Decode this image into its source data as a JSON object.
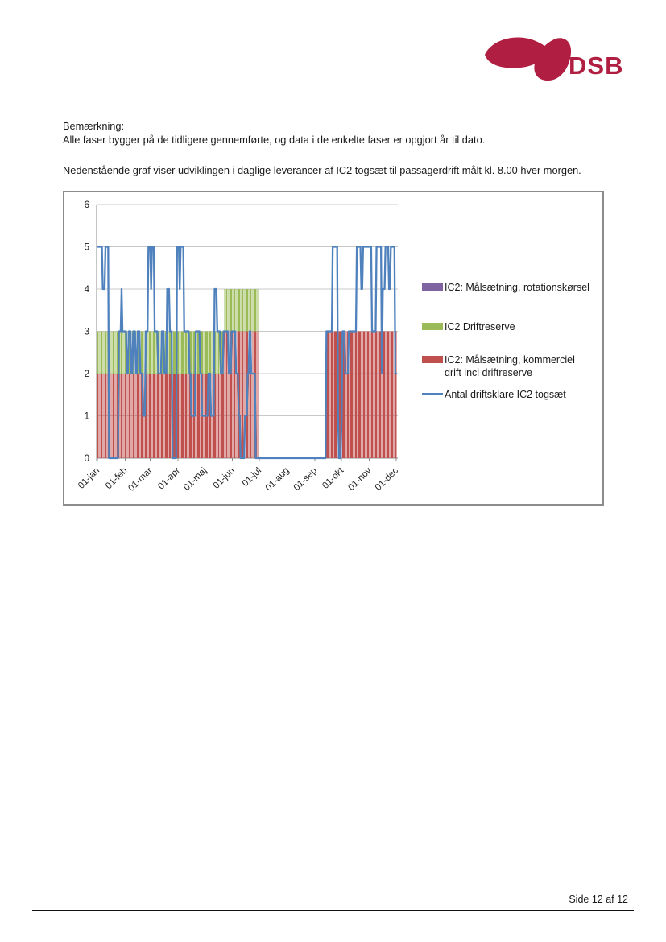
{
  "logo": {
    "text": "DSB",
    "color": "#B01E41"
  },
  "remark": {
    "heading": "Bemærkning:",
    "body": "Alle faser bygger på de tidligere gennemførte, og data i de enkelte faser er opgjort år til dato."
  },
  "intro": "Nedenstående graf viser udviklingen i daglige leverancer af IC2 togsæt til passagerdrift målt kl. 8.00 hver morgen.",
  "footer": {
    "page_label": "Side 12 af 12"
  },
  "chart_data": {
    "type": "bar",
    "subtype": "stacked-daily-bars-with-line",
    "x": {
      "unit": "day-of-year",
      "range": [
        1,
        335
      ],
      "tick_days": [
        1,
        32,
        60,
        91,
        121,
        152,
        182,
        213,
        244,
        274,
        305,
        335
      ],
      "tick_labels": [
        "01-jan",
        "01-feb",
        "01-mar",
        "01-apr",
        "01-maj",
        "01-jun",
        "01-jul",
        "01-aug",
        "01-sep",
        "01-okt",
        "01-nov",
        "01-dec"
      ]
    },
    "y": {
      "min": 0,
      "max": 6,
      "ticks": [
        0,
        1,
        2,
        3,
        4,
        5,
        6
      ]
    },
    "grid": "horizontal",
    "legend_position": "right",
    "series": [
      {
        "name": "IC2: Målsætning, rotationskørsel",
        "type": "bar",
        "color": "#8064A2",
        "runs_day_value": []
      },
      {
        "name": "IC2 Driftreserve",
        "type": "bar",
        "color": "#9BBB59",
        "stacked_on": 2,
        "runs_day_value": [
          [
            1,
            142,
            1
          ],
          [
            143,
            181,
            1
          ]
        ]
      },
      {
        "name": "IC2: Målsætning, kommerciel drift  incl driftreserve",
        "type": "bar",
        "color": "#C0504D",
        "runs_day_value": [
          [
            1,
            142,
            2
          ],
          [
            143,
            181,
            3
          ],
          [
            257,
            335,
            3
          ]
        ]
      },
      {
        "name": "Antal driftsklare IC2 togsæt",
        "type": "line",
        "color": "#4F81BD",
        "runs_day_value": [
          [
            1,
            6,
            5
          ],
          [
            7,
            9,
            4
          ],
          [
            10,
            13,
            5
          ],
          [
            14,
            24,
            0
          ],
          [
            25,
            27,
            3
          ],
          [
            28,
            28,
            4
          ],
          [
            29,
            33,
            3
          ],
          [
            34,
            35,
            2
          ],
          [
            36,
            38,
            3
          ],
          [
            39,
            40,
            2
          ],
          [
            41,
            43,
            3
          ],
          [
            44,
            45,
            2
          ],
          [
            46,
            48,
            3
          ],
          [
            49,
            51,
            2
          ],
          [
            52,
            54,
            1
          ],
          [
            55,
            57,
            3
          ],
          [
            58,
            60,
            5
          ],
          [
            61,
            61,
            4
          ],
          [
            62,
            64,
            5
          ],
          [
            65,
            68,
            3
          ],
          [
            69,
            72,
            2
          ],
          [
            73,
            75,
            3
          ],
          [
            76,
            78,
            2
          ],
          [
            79,
            81,
            4
          ],
          [
            82,
            84,
            3
          ],
          [
            85,
            89,
            0
          ],
          [
            90,
            92,
            5
          ],
          [
            93,
            93,
            4
          ],
          [
            94,
            97,
            5
          ],
          [
            98,
            103,
            3
          ],
          [
            104,
            105,
            2
          ],
          [
            106,
            110,
            1
          ],
          [
            111,
            115,
            3
          ],
          [
            116,
            117,
            2
          ],
          [
            118,
            124,
            1
          ],
          [
            125,
            127,
            2
          ],
          [
            128,
            131,
            1
          ],
          [
            132,
            134,
            4
          ],
          [
            135,
            138,
            3
          ],
          [
            139,
            141,
            2
          ],
          [
            142,
            147,
            3
          ],
          [
            148,
            150,
            2
          ],
          [
            151,
            155,
            3
          ],
          [
            156,
            158,
            2
          ],
          [
            159,
            160,
            1
          ],
          [
            161,
            165,
            0
          ],
          [
            166,
            168,
            1
          ],
          [
            169,
            170,
            2
          ],
          [
            171,
            172,
            3
          ],
          [
            173,
            177,
            2
          ],
          [
            178,
            256,
            0
          ],
          [
            257,
            263,
            3
          ],
          [
            264,
            269,
            5
          ],
          [
            270,
            270,
            1
          ],
          [
            271,
            273,
            0
          ],
          [
            274,
            274,
            1
          ],
          [
            275,
            277,
            3
          ],
          [
            278,
            281,
            2
          ],
          [
            282,
            290,
            3
          ],
          [
            291,
            295,
            5
          ],
          [
            296,
            297,
            4
          ],
          [
            298,
            307,
            5
          ],
          [
            308,
            312,
            3
          ],
          [
            313,
            318,
            5
          ],
          [
            319,
            319,
            2
          ],
          [
            320,
            322,
            4
          ],
          [
            323,
            326,
            5
          ],
          [
            327,
            328,
            4
          ],
          [
            329,
            333,
            5
          ],
          [
            334,
            335,
            2
          ]
        ]
      }
    ],
    "legend": {
      "entries": [
        {
          "label": "IC2: Målsætning, rotationskørsel"
        },
        {
          "label": "IC2 Driftreserve"
        },
        {
          "label": "IC2: Målsætning, kommerciel drift  incl driftreserve"
        },
        {
          "label": "Antal driftsklare IC2 togsæt"
        }
      ]
    },
    "colors": {
      "grid": "#c8c8c8",
      "axis": "#8c8c8c",
      "frame": "#8c8c8c"
    }
  }
}
